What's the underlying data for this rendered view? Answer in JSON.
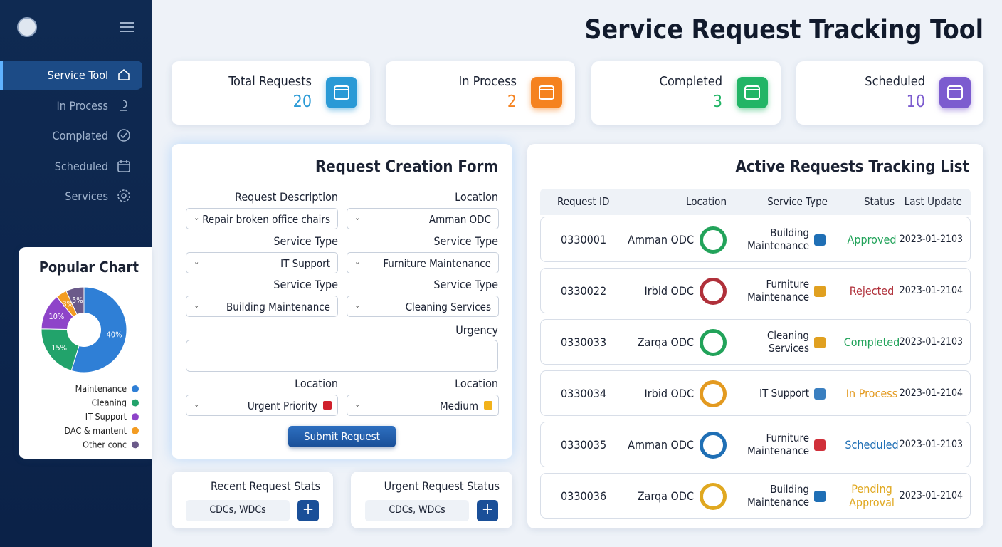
{
  "sidebar": {
    "nav": [
      "Service Tool",
      "In Process",
      "Complated",
      "Scheduled",
      "Services"
    ]
  },
  "title": "Service Request Tracking Tool",
  "stats": [
    {
      "label": "Total Requests",
      "value": "20",
      "color": "#2a9ad6"
    },
    {
      "label": "In Process",
      "value": "2",
      "color": "#f5821f"
    },
    {
      "label": "Completed",
      "value": "3",
      "color": "#22b566"
    },
    {
      "label": "Scheduled",
      "value": "10",
      "color": "#7c5ccf"
    }
  ],
  "chart_data": {
    "type": "pie",
    "title": "Popular Chart",
    "categories": [
      "Maintenance",
      "Cleaning",
      "IT Support",
      "DAC & mantent",
      "Other conc"
    ],
    "values": [
      40,
      15,
      10,
      3,
      5
    ],
    "value_labels": [
      "40%",
      "15%",
      "10%",
      "3%",
      "5%"
    ],
    "colors": [
      "#2f7fd6",
      "#22a36b",
      "#8e44c9",
      "#f39c22",
      "#6b5a8a"
    ]
  },
  "form": {
    "title": "Request Creation Form",
    "rows": [
      [
        {
          "label": "Request Description",
          "value": "Repair broken office chairs"
        },
        {
          "label": "Location",
          "value": "Amman ODC"
        }
      ],
      [
        {
          "label": "Service Type",
          "value": "IT Support"
        },
        {
          "label": "Service Type",
          "value": "Furniture Maintenance"
        }
      ],
      [
        {
          "label": "Service Type",
          "value": "Building Maintenance"
        },
        {
          "label": "Service Type",
          "value": "Cleaning Services"
        }
      ],
      [
        {
          "label": "Location",
          "value": "Urgent Priority"
        },
        {
          "label": "Location",
          "value": "Medium"
        }
      ]
    ],
    "urgency_label": "Urgency",
    "submit": "Submit Request"
  },
  "recent": {
    "title": "Recent Request Stats",
    "value": "CDCs, WDCs"
  },
  "urgent": {
    "title": "Urgent Request Status",
    "value": "CDCs, WDCs"
  },
  "tracking": {
    "title": "Active Requests Tracking List",
    "columns": [
      "Request ID",
      "Location",
      "Service Type",
      "Status",
      "Last Update"
    ],
    "rows": [
      {
        "id": "0330001",
        "location": "Amman ODC",
        "service": "Building Maintenance",
        "status": "Approved",
        "date": "2023-01-2103",
        "color": "#22a35a"
      },
      {
        "id": "0330022",
        "location": "Irbid ODC",
        "service": "Furniture Maintenance",
        "status": "Rejected",
        "date": "2023-01-2104",
        "color": "#b0303a"
      },
      {
        "id": "0330033",
        "location": "Zarqa ODC",
        "service": "Cleaning Services",
        "status": "Completed",
        "date": "2023-01-2103",
        "color": "#22a35a"
      },
      {
        "id": "0330034",
        "location": "Irbid ODC",
        "service": "IT Support",
        "status": "In Process",
        "date": "2023-01-2104",
        "color": "#e39a20"
      },
      {
        "id": "0330035",
        "location": "Amman ODC",
        "service": "Furniture Maintenance",
        "status": "Scheduled",
        "date": "2023-01-2103",
        "color": "#1f6fb5"
      },
      {
        "id": "0330036",
        "location": "Zarqa ODC",
        "service": "Building Maintenance",
        "status": "Pending Approval",
        "date": "2023-01-2104",
        "color": "#e0a820"
      }
    ]
  }
}
